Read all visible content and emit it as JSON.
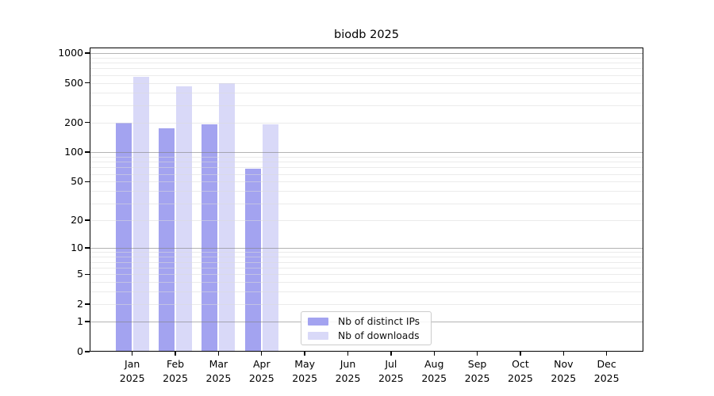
{
  "chart_data": {
    "type": "bar",
    "title": "biodb 2025",
    "categories": [
      "Jan 2025",
      "Feb 2025",
      "Mar 2025",
      "Apr 2025",
      "May 2025",
      "Jun 2025",
      "Jul 2025",
      "Aug 2025",
      "Sep 2025",
      "Oct 2025",
      "Nov 2025",
      "Dec 2025"
    ],
    "series": [
      {
        "name": "Nb of distinct IPs",
        "color": "#a3a3f0",
        "values": [
          200,
          175,
          190,
          68,
          null,
          null,
          null,
          null,
          null,
          null,
          null,
          null
        ]
      },
      {
        "name": "Nb of downloads",
        "color": "#d9d9f8",
        "values": [
          580,
          460,
          495,
          190,
          null,
          null,
          null,
          null,
          null,
          null,
          null,
          null
        ]
      }
    ],
    "xlabel": "",
    "ylabel": "",
    "yscale": "log10(1+value), symlog-like with 0 at baseline",
    "yticks": [
      0,
      1,
      2,
      5,
      10,
      20,
      50,
      100,
      200,
      500,
      1000
    ],
    "ylim": [
      0,
      1135
    ],
    "grid": {
      "horizontal_major": true,
      "horizontal_minor": true,
      "vertical": false
    },
    "legend": {
      "position": "inside-bottom-center",
      "frame": true
    }
  }
}
